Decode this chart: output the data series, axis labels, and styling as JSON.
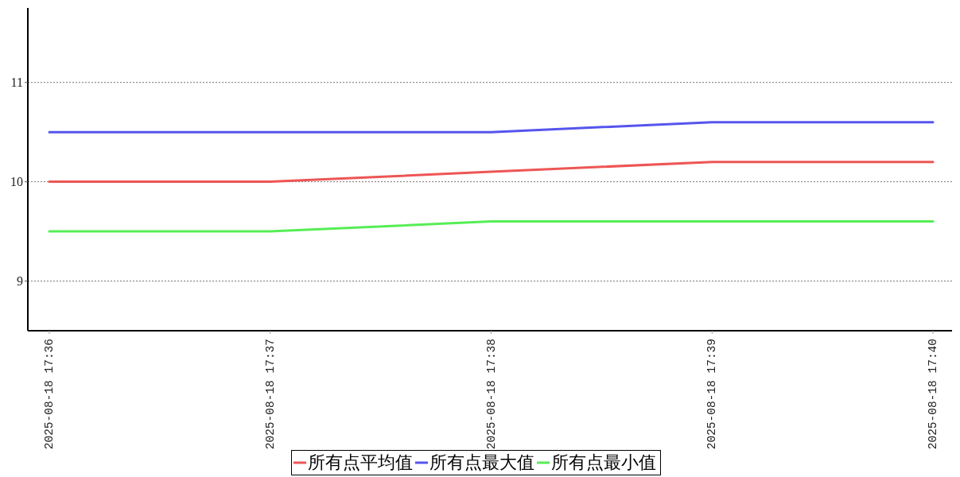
{
  "chart_data": {
    "type": "line",
    "categories": [
      "2025-08-18 17:36",
      "2025-08-18 17:37",
      "2025-08-18 17:38",
      "2025-08-18 17:39",
      "2025-08-18 17:40"
    ],
    "series": [
      {
        "name": "所有点平均值",
        "color": "#ee5555",
        "values": [
          10,
          10,
          10.1,
          10.2,
          10.2
        ]
      },
      {
        "name": "所有点最大值",
        "color": "#5555ee",
        "values": [
          10.5,
          10.5,
          10.5,
          10.6,
          10.6
        ]
      },
      {
        "name": "所有点最小值",
        "color": "#55ee55",
        "values": [
          9.5,
          9.5,
          9.6,
          9.6,
          9.6
        ]
      }
    ],
    "ylim": [
      8.5,
      11.75
    ],
    "yticks": [
      9,
      10,
      11
    ],
    "grid": "y",
    "legend": "bottom",
    "line_style": "solid"
  }
}
